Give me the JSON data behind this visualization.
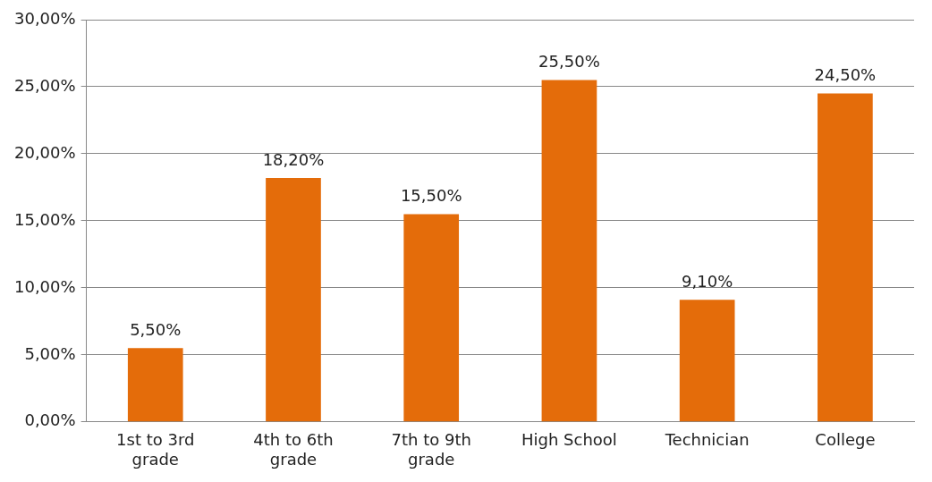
{
  "chart_data": {
    "type": "bar",
    "categories": [
      "1st to 3rd grade",
      "4th to 6th grade",
      "7th to 9th grade",
      "High School",
      "Technician",
      "College"
    ],
    "values": [
      5.5,
      18.2,
      15.5,
      25.5,
      9.1,
      24.5
    ],
    "value_labels": [
      "5,50%",
      "18,20%",
      "15,50%",
      "25,50%",
      "9,10%",
      "24,50%"
    ],
    "color": "#e46c0a",
    "ylim": [
      0,
      30
    ],
    "yticks": [
      {
        "value": 0,
        "label": "0,00%"
      },
      {
        "value": 5,
        "label": "5,00%"
      },
      {
        "value": 10,
        "label": "10,00%"
      },
      {
        "value": 15,
        "label": "15,00%"
      },
      {
        "value": 20,
        "label": "20,00%"
      },
      {
        "value": 25,
        "label": "25,00%"
      },
      {
        "value": 30,
        "label": "30,00%"
      }
    ],
    "grid": "y",
    "legend": false
  }
}
